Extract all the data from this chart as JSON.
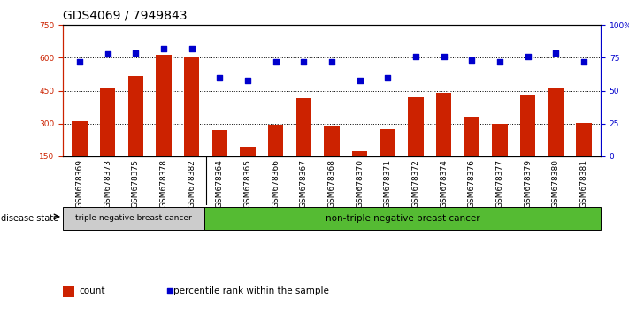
{
  "title": "GDS4069 / 7949843",
  "samples": [
    "GSM678369",
    "GSM678373",
    "GSM678375",
    "GSM678378",
    "GSM678382",
    "GSM678364",
    "GSM678365",
    "GSM678366",
    "GSM678367",
    "GSM678368",
    "GSM678370",
    "GSM678371",
    "GSM678372",
    "GSM678374",
    "GSM678376",
    "GSM678377",
    "GSM678379",
    "GSM678380",
    "GSM678381"
  ],
  "counts": [
    310,
    463,
    518,
    615,
    600,
    270,
    193,
    295,
    415,
    293,
    175,
    275,
    420,
    440,
    330,
    300,
    430,
    465,
    302
  ],
  "percentiles": [
    72,
    78,
    79,
    82,
    82,
    60,
    58,
    72,
    72,
    72,
    58,
    60,
    76,
    76,
    73,
    72,
    76,
    79,
    72
  ],
  "ylim_left": [
    150,
    750
  ],
  "ylim_right": [
    0,
    100
  ],
  "yticks_left": [
    150,
    300,
    450,
    600,
    750
  ],
  "yticks_right": [
    0,
    25,
    50,
    75,
    100
  ],
  "hlines": [
    300,
    450,
    600
  ],
  "bar_color": "#cc2200",
  "dot_color": "#0000cc",
  "triple_neg_count": 5,
  "label_triple": "triple negative breast cancer",
  "label_non_triple": "non-triple negative breast cancer",
  "disease_state_label": "disease state",
  "legend_count": "count",
  "legend_percentile": "percentile rank within the sample",
  "bg_color_triple": "#cccccc",
  "bg_color_non_triple": "#55bb33",
  "title_fontsize": 10,
  "tick_fontsize": 6.5,
  "axis_color_left": "#cc2200",
  "axis_color_right": "#0000cc"
}
